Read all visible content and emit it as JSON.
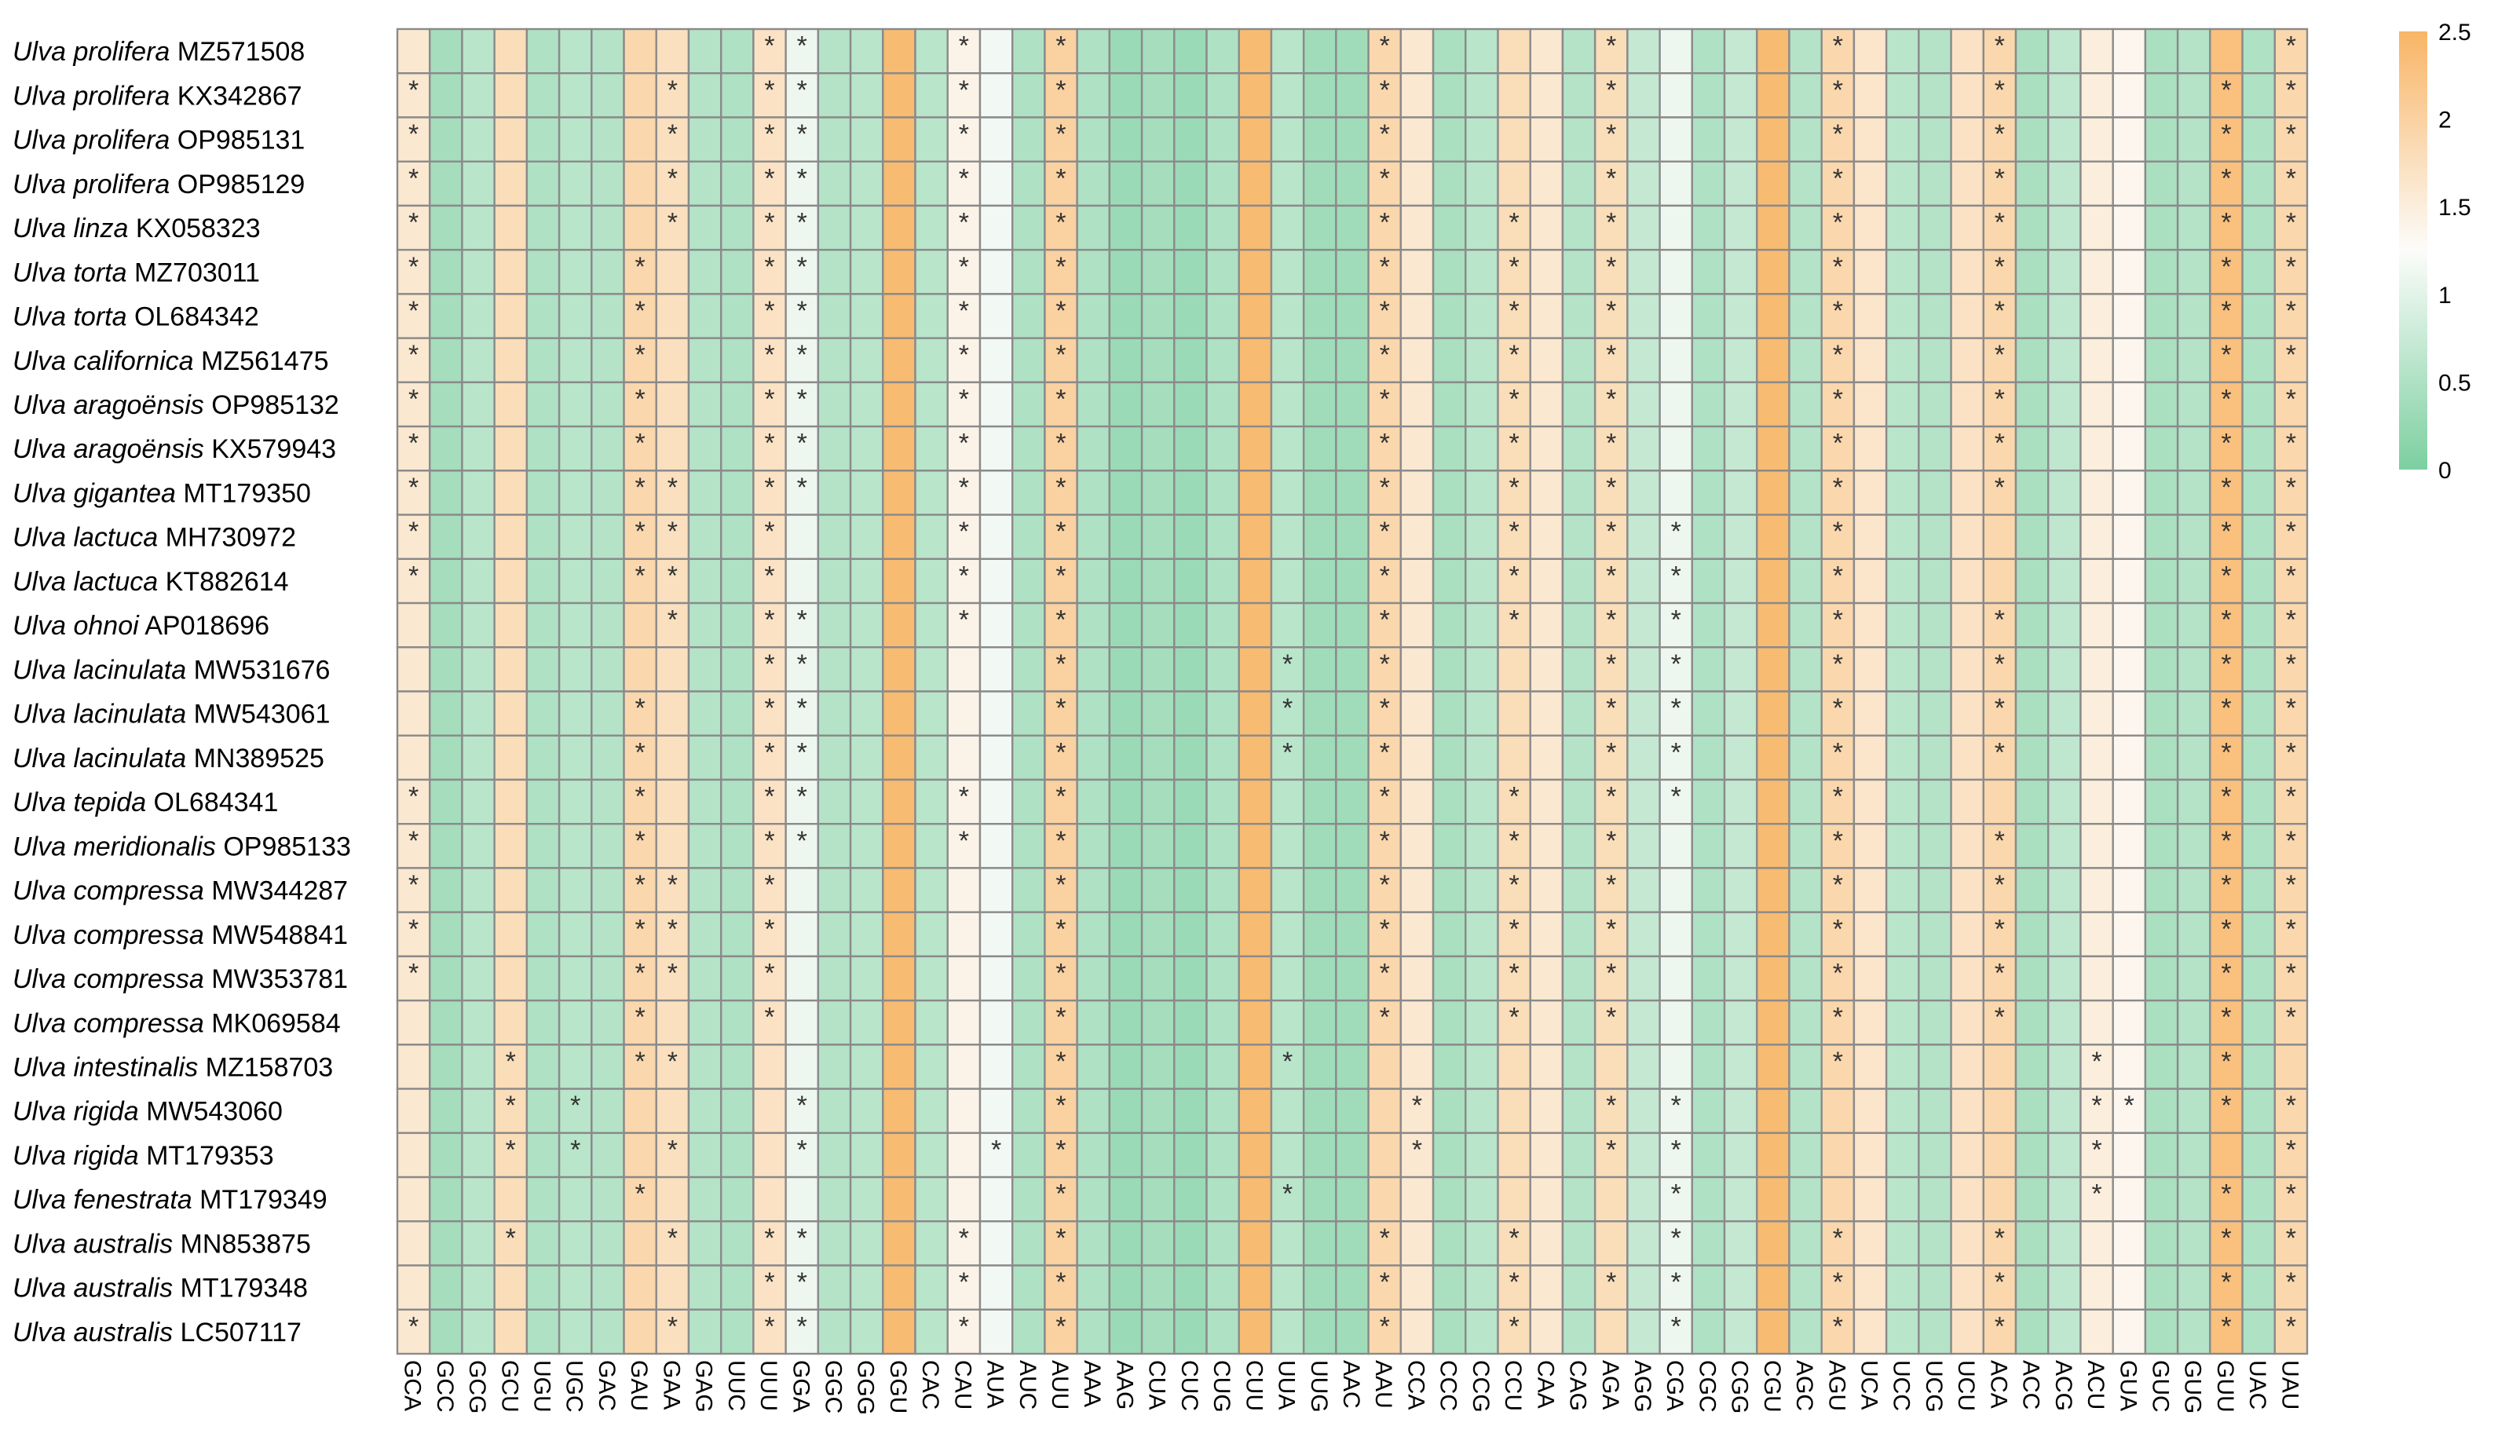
{
  "colors": {
    "low": "#7ccfa0",
    "mid": "#fcfcfa",
    "high": "#f8b566",
    "grid": "#8a8a8a",
    "star": "#333333"
  },
  "chart_data": {
    "type": "heatmap",
    "title": "",
    "xlabel": "",
    "ylabel": "",
    "colorbar": {
      "min": 0,
      "max": 2.5,
      "ticks": [
        "2.5",
        "2",
        "1.5",
        "1",
        "0.5",
        "0"
      ],
      "position": "top-right"
    },
    "columns": [
      "GCA",
      "GCC",
      "GCG",
      "GCU",
      "UGU",
      "UGC",
      "GAC",
      "GAU",
      "GAA",
      "GAG",
      "UUC",
      "UUU",
      "GGA",
      "GGC",
      "GGG",
      "GGU",
      "CAC",
      "CAU",
      "AUA",
      "AUC",
      "AUU",
      "AAA",
      "AAG",
      "CUA",
      "CUC",
      "CUG",
      "CUU",
      "UUA",
      "UUG",
      "AAC",
      "AAU",
      "CCA",
      "CCC",
      "CCG",
      "CCU",
      "CAA",
      "CAG",
      "AGA",
      "AGG",
      "CGA",
      "CGC",
      "CGG",
      "CGU",
      "AGC",
      "AGU",
      "UCA",
      "UCC",
      "UCG",
      "UCU",
      "ACA",
      "ACC",
      "ACG",
      "ACU",
      "GUA",
      "GUC",
      "GUG",
      "GUU",
      "UAC",
      "UAU"
    ],
    "col_values": [
      1.6,
      0.4,
      0.6,
      1.8,
      0.5,
      0.6,
      0.55,
      1.9,
      1.75,
      0.55,
      0.5,
      1.7,
      1.1,
      0.55,
      0.6,
      2.4,
      0.6,
      1.4,
      1.15,
      0.5,
      2.0,
      0.5,
      0.3,
      0.4,
      0.3,
      0.5,
      2.4,
      0.6,
      0.35,
      0.35,
      1.9,
      1.6,
      0.45,
      0.6,
      1.8,
      1.6,
      0.55,
      1.8,
      0.7,
      1.1,
      0.5,
      0.7,
      2.4,
      0.55,
      1.9,
      1.65,
      0.6,
      0.55,
      1.7,
      1.9,
      0.45,
      0.65,
      1.5,
      1.35,
      0.45,
      0.55,
      2.3,
      0.5,
      1.9
    ],
    "rows": [
      {
        "genus": "Ulva prolifera",
        "acc": "MZ571508",
        "stars": [
          "UUU",
          "GGA",
          "CAU",
          "AUU",
          "AAU",
          "AGA",
          "AGU",
          "ACA",
          "UAU"
        ]
      },
      {
        "genus": "Ulva prolifera",
        "acc": "KX342867",
        "stars": [
          "GCA",
          "GAA",
          "UUU",
          "GGA",
          "CAU",
          "AUU",
          "AAU",
          "AGA",
          "AGU",
          "ACA",
          "GUU",
          "UAU"
        ]
      },
      {
        "genus": "Ulva prolifera",
        "acc": "OP985131",
        "stars": [
          "GCA",
          "GAA",
          "UUU",
          "GGA",
          "CAU",
          "AUU",
          "AAU",
          "AGA",
          "AGU",
          "ACA",
          "GUU",
          "UAU"
        ]
      },
      {
        "genus": "Ulva prolifera",
        "acc": "OP985129",
        "stars": [
          "GCA",
          "GAA",
          "UUU",
          "GGA",
          "CAU",
          "AUU",
          "AAU",
          "AGA",
          "AGU",
          "ACA",
          "GUU",
          "UAU"
        ]
      },
      {
        "genus": "Ulva linza",
        "acc": "KX058323",
        "stars": [
          "GCA",
          "GAA",
          "UUU",
          "GGA",
          "CAU",
          "AUU",
          "AAU",
          "CCU",
          "AGA",
          "AGU",
          "ACA",
          "GUU",
          "UAU"
        ]
      },
      {
        "genus": "Ulva torta",
        "acc": "MZ703011",
        "stars": [
          "GCA",
          "GAU",
          "UUU",
          "GGA",
          "CAU",
          "AUU",
          "AAU",
          "CCU",
          "AGA",
          "AGU",
          "ACA",
          "GUU",
          "UAU"
        ]
      },
      {
        "genus": "Ulva torta",
        "acc": "OL684342",
        "stars": [
          "GCA",
          "GAU",
          "UUU",
          "GGA",
          "CAU",
          "AUU",
          "AAU",
          "CCU",
          "AGA",
          "AGU",
          "ACA",
          "GUU",
          "UAU"
        ]
      },
      {
        "genus": "Ulva californica",
        "acc": "MZ561475",
        "stars": [
          "GCA",
          "GAU",
          "UUU",
          "GGA",
          "CAU",
          "AUU",
          "AAU",
          "CCU",
          "AGA",
          "AGU",
          "ACA",
          "GUU",
          "UAU"
        ]
      },
      {
        "genus": "Ulva aragoënsis",
        "acc": "OP985132",
        "stars": [
          "GCA",
          "GAU",
          "UUU",
          "GGA",
          "CAU",
          "AUU",
          "AAU",
          "CCU",
          "AGA",
          "AGU",
          "ACA",
          "GUU",
          "UAU"
        ]
      },
      {
        "genus": "Ulva aragoënsis",
        "acc": "KX579943",
        "stars": [
          "GCA",
          "GAU",
          "UUU",
          "GGA",
          "CAU",
          "AUU",
          "AAU",
          "CCU",
          "AGA",
          "AGU",
          "ACA",
          "GUU",
          "UAU"
        ]
      },
      {
        "genus": "Ulva gigantea",
        "acc": "MT179350",
        "stars": [
          "GCA",
          "GAU",
          "GAA",
          "UUU",
          "GGA",
          "CAU",
          "AUU",
          "AAU",
          "CCU",
          "AGA",
          "AGU",
          "ACA",
          "GUU",
          "UAU"
        ]
      },
      {
        "genus": "Ulva lactuca",
        "acc": "MH730972",
        "stars": [
          "GCA",
          "GAU",
          "GAA",
          "UUU",
          "CAU",
          "AUU",
          "AAU",
          "CCU",
          "AGA",
          "CGA",
          "AGU",
          "GUU",
          "UAU"
        ]
      },
      {
        "genus": "Ulva lactuca",
        "acc": "KT882614",
        "stars": [
          "GCA",
          "GAU",
          "GAA",
          "UUU",
          "CAU",
          "AUU",
          "AAU",
          "CCU",
          "AGA",
          "CGA",
          "AGU",
          "GUU",
          "UAU"
        ]
      },
      {
        "genus": "Ulva ohnoi",
        "acc": "AP018696",
        "stars": [
          "GAA",
          "UUU",
          "GGA",
          "CAU",
          "AUU",
          "AAU",
          "CCU",
          "AGA",
          "CGA",
          "AGU",
          "ACA",
          "GUU",
          "UAU"
        ]
      },
      {
        "genus": "Ulva lacinulata",
        "acc": "MW531676",
        "stars": [
          "UUU",
          "GGA",
          "AUU",
          "UUA",
          "AAU",
          "AGA",
          "CGA",
          "AGU",
          "ACA",
          "GUU",
          "UAU"
        ]
      },
      {
        "genus": "Ulva lacinulata",
        "acc": "MW543061",
        "stars": [
          "GAU",
          "UUU",
          "GGA",
          "AUU",
          "UUA",
          "AAU",
          "AGA",
          "CGA",
          "AGU",
          "ACA",
          "GUU",
          "UAU"
        ]
      },
      {
        "genus": "Ulva lacinulata",
        "acc": "MN389525",
        "stars": [
          "GAU",
          "UUU",
          "GGA",
          "AUU",
          "UUA",
          "AAU",
          "AGA",
          "CGA",
          "AGU",
          "ACA",
          "GUU",
          "UAU"
        ]
      },
      {
        "genus": "Ulva tepida",
        "acc": "OL684341",
        "stars": [
          "GCA",
          "GAU",
          "UUU",
          "GGA",
          "CAU",
          "AUU",
          "AAU",
          "CCU",
          "AGA",
          "CGA",
          "AGU",
          "GUU",
          "UAU"
        ]
      },
      {
        "genus": "Ulva meridionalis",
        "acc": "OP985133",
        "stars": [
          "GCA",
          "GAU",
          "UUU",
          "GGA",
          "CAU",
          "AUU",
          "AAU",
          "CCU",
          "AGA",
          "AGU",
          "ACA",
          "GUU",
          "UAU"
        ]
      },
      {
        "genus": "Ulva compressa",
        "acc": "MW344287",
        "stars": [
          "GCA",
          "GAU",
          "GAA",
          "UUU",
          "AUU",
          "AAU",
          "CCU",
          "AGA",
          "AGU",
          "ACA",
          "GUU",
          "UAU"
        ]
      },
      {
        "genus": "Ulva compressa",
        "acc": "MW548841",
        "stars": [
          "GCA",
          "GAU",
          "GAA",
          "UUU",
          "AUU",
          "AAU",
          "CCU",
          "AGA",
          "AGU",
          "ACA",
          "GUU",
          "UAU"
        ]
      },
      {
        "genus": "Ulva compressa",
        "acc": "MW353781",
        "stars": [
          "GCA",
          "GAU",
          "GAA",
          "UUU",
          "AUU",
          "AAU",
          "CCU",
          "AGA",
          "AGU",
          "ACA",
          "GUU",
          "UAU"
        ]
      },
      {
        "genus": "Ulva compressa",
        "acc": "MK069584",
        "stars": [
          "GAU",
          "UUU",
          "AUU",
          "AAU",
          "CCU",
          "AGA",
          "AGU",
          "ACA",
          "GUU",
          "UAU"
        ]
      },
      {
        "genus": "Ulva intestinalis",
        "acc": "MZ158703",
        "stars": [
          "GCU",
          "GAU",
          "GAA",
          "AUU",
          "UUA",
          "AGU",
          "ACU",
          "GUU"
        ]
      },
      {
        "genus": "Ulva rigida",
        "acc": "MW543060",
        "stars": [
          "GCU",
          "UGC",
          "GGA",
          "AUU",
          "CCA",
          "AGA",
          "CGA",
          "ACU",
          "GUA",
          "GUU",
          "UAU"
        ]
      },
      {
        "genus": "Ulva rigida",
        "acc": "MT179353",
        "stars": [
          "GCU",
          "UGC",
          "GAA",
          "GGA",
          "AUA",
          "AUU",
          "CCA",
          "AGA",
          "CGA",
          "ACU",
          "UAU"
        ]
      },
      {
        "genus": "Ulva fenestrata",
        "acc": "MT179349",
        "stars": [
          "GAU",
          "AUU",
          "UUA",
          "CGA",
          "ACU",
          "GUU",
          "UAU"
        ]
      },
      {
        "genus": "Ulva australis",
        "acc": "MN853875",
        "stars": [
          "GCU",
          "GAA",
          "UUU",
          "GGA",
          "CAU",
          "AUU",
          "AAU",
          "CCU",
          "CGA",
          "AGU",
          "ACA",
          "GUU",
          "UAU"
        ]
      },
      {
        "genus": "Ulva australis",
        "acc": "MT179348",
        "stars": [
          "UUU",
          "GGA",
          "CAU",
          "AUU",
          "AAU",
          "CCU",
          "AGA",
          "CGA",
          "AGU",
          "ACA",
          "GUU",
          "UAU"
        ]
      },
      {
        "genus": "Ulva australis",
        "acc": "LC507117",
        "stars": [
          "GCA",
          "GAA",
          "UUU",
          "GGA",
          "CAU",
          "AUU",
          "AAU",
          "CCU",
          "CGA",
          "AGU",
          "ACA",
          "GUU",
          "UAU"
        ]
      }
    ]
  }
}
